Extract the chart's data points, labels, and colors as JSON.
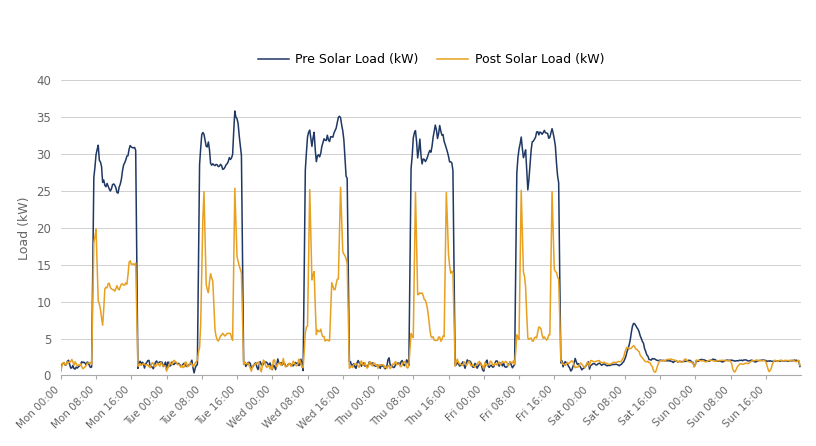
{
  "ylabel": "Load (kW)",
  "ylim": [
    0,
    40
  ],
  "yticks": [
    0,
    5,
    10,
    15,
    20,
    25,
    30,
    35,
    40
  ],
  "pre_solar_color": "#1f3864",
  "post_solar_color": "#e8a020",
  "legend_pre": "Pre Solar Load (kW)",
  "legend_post": "Post Solar Load (kW)",
  "bg_color": "#ffffff",
  "grid_color": "#d0d0d0",
  "x_tick_labels": [
    "Mon 00:00",
    "Mon 08:00",
    "Mon 16:00",
    "Tue 00:00",
    "Tue 08:00",
    "Tue 16:00",
    "Wed 00:00",
    "Wed 08:00",
    "Wed 16:00",
    "Thu 00:00",
    "Thu 08:00",
    "Thu 16:00",
    "Fri 00:00",
    "Fri 08:00",
    "Fri 16:00",
    "Sat 00:00",
    "Sat 08:00",
    "Sat 16:00",
    "Sun 00:00",
    "Sun 08:00",
    "Sun 16:00"
  ]
}
